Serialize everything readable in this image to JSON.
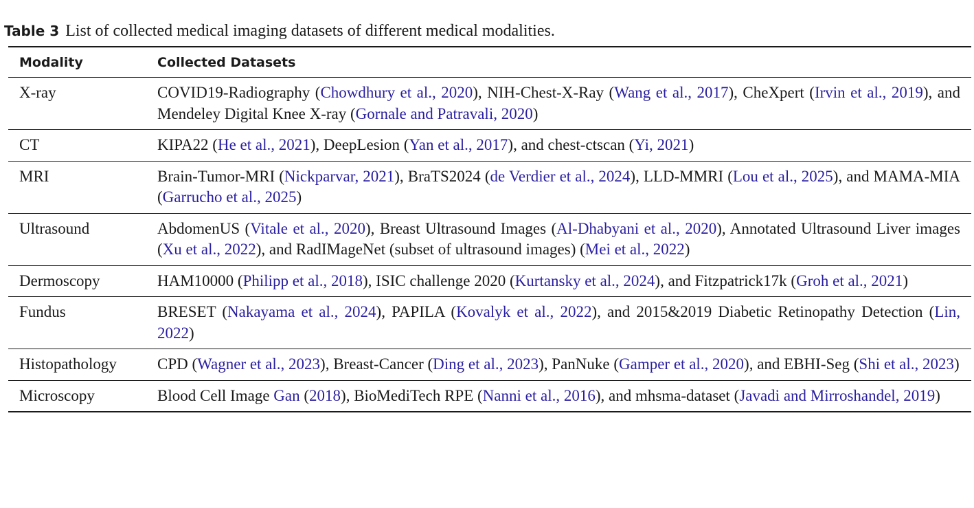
{
  "caption": {
    "label": "Table 3",
    "text": "List of collected medical imaging datasets of different medical modalities."
  },
  "table": {
    "headers": [
      "Modality",
      "Collected Datasets"
    ],
    "rows": [
      {
        "modality": "X-ray",
        "segments": [
          {
            "t": "COVID19-Radiography ("
          },
          {
            "t": "Chowdhury et al., 2020",
            "c": 1
          },
          {
            "t": "), NIH-Chest-X-Ray ("
          },
          {
            "t": "Wang et al., 2017",
            "c": 1
          },
          {
            "t": "), CheXpert ("
          },
          {
            "t": "Irvin et al., 2019",
            "c": 1
          },
          {
            "t": "), and Mendeley Digital Knee X-ray ("
          },
          {
            "t": "Gornale and Patravali, 2020",
            "c": 1
          },
          {
            "t": ")"
          }
        ]
      },
      {
        "modality": "CT",
        "segments": [
          {
            "t": "KIPA22 ("
          },
          {
            "t": "He et al., 2021",
            "c": 1
          },
          {
            "t": "), DeepLesion ("
          },
          {
            "t": "Yan et al., 2017",
            "c": 1
          },
          {
            "t": "), and chest-ctscan ("
          },
          {
            "t": "Yi, 2021",
            "c": 1
          },
          {
            "t": ")"
          }
        ]
      },
      {
        "modality": "MRI",
        "segments": [
          {
            "t": "Brain-Tumor-MRI ("
          },
          {
            "t": "Nickparvar, 2021",
            "c": 1
          },
          {
            "t": "), BraTS2024 ("
          },
          {
            "t": "de Verdier et al., 2024",
            "c": 1
          },
          {
            "t": "), LLD-MMRI ("
          },
          {
            "t": "Lou et al., 2025",
            "c": 1
          },
          {
            "t": "), and MAMA-MIA ("
          },
          {
            "t": "Garrucho et al., 2025",
            "c": 1
          },
          {
            "t": ")"
          }
        ]
      },
      {
        "modality": "Ultrasound",
        "segments": [
          {
            "t": "AbdomenUS ("
          },
          {
            "t": "Vitale et al., 2020",
            "c": 1
          },
          {
            "t": "), Breast Ultrasound Images ("
          },
          {
            "t": "Al-Dhabyani et al., 2020",
            "c": 1
          },
          {
            "t": "), Annotated Ultrasound Liver images ("
          },
          {
            "t": "Xu et al., 2022",
            "c": 1
          },
          {
            "t": "), and RadIMageNet (subset of ultrasound images) ("
          },
          {
            "t": "Mei et al., 2022",
            "c": 1
          },
          {
            "t": ")"
          }
        ]
      },
      {
        "modality": "Dermoscopy",
        "segments": [
          {
            "t": "HAM10000 ("
          },
          {
            "t": "Philipp et al., 2018",
            "c": 1
          },
          {
            "t": "), ISIC challenge 2020 ("
          },
          {
            "t": "Kurtansky et al., 2024",
            "c": 1
          },
          {
            "t": "), and Fitzpatrick17k ("
          },
          {
            "t": "Groh et al., 2021",
            "c": 1
          },
          {
            "t": ")"
          }
        ]
      },
      {
        "modality": "Fundus",
        "segments": [
          {
            "t": "BRESET ("
          },
          {
            "t": "Nakayama et al., 2024",
            "c": 1
          },
          {
            "t": "), PAPILA ("
          },
          {
            "t": "Kovalyk et al., 2022",
            "c": 1
          },
          {
            "t": "), and 2015&2019 Diabetic Retinopathy Detection ("
          },
          {
            "t": "Lin, 2022",
            "c": 1
          },
          {
            "t": ")"
          }
        ]
      },
      {
        "modality": "Histopathology",
        "segments": [
          {
            "t": "CPD ("
          },
          {
            "t": "Wagner et al., 2023",
            "c": 1
          },
          {
            "t": "), Breast-Cancer ("
          },
          {
            "t": "Ding et al., 2023",
            "c": 1
          },
          {
            "t": "), PanNuke ("
          },
          {
            "t": "Gamper et al., 2020",
            "c": 1
          },
          {
            "t": "), and EBHI-Seg ("
          },
          {
            "t": "Shi et al., 2023",
            "c": 1
          },
          {
            "t": ")"
          }
        ]
      },
      {
        "modality": "Microscopy",
        "segments": [
          {
            "t": "Blood Cell Image "
          },
          {
            "t": "Gan",
            "c": 1
          },
          {
            "t": " ("
          },
          {
            "t": "2018",
            "c": 1
          },
          {
            "t": "), BioMediTech RPE ("
          },
          {
            "t": "Nanni et al., 2016",
            "c": 1
          },
          {
            "t": "), and mhsma-dataset ("
          },
          {
            "t": "Javadi and Mirroshandel, 2019",
            "c": 1
          },
          {
            "t": ")"
          }
        ]
      }
    ]
  }
}
